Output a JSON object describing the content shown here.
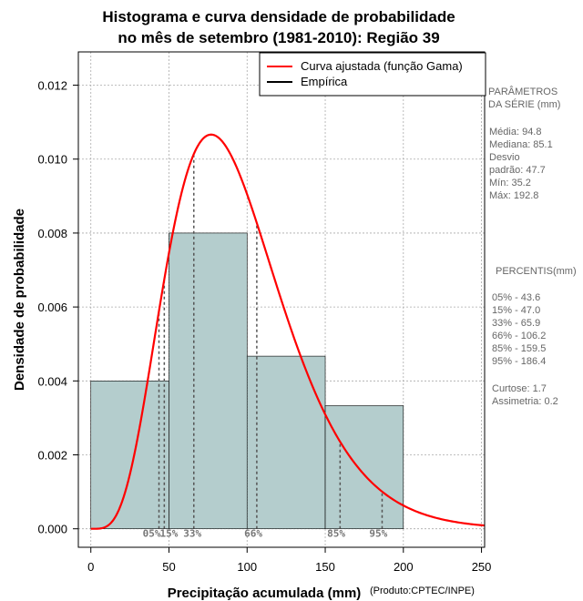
{
  "chart_data": {
    "type": "histogram",
    "title": [
      "Histograma e curva densidade de probabilidade",
      "no mês de setembro (1981-2010): Região 39"
    ],
    "xlabel": "Precipitação acumulada (mm)",
    "ylabel": "Densidade de probabilidade",
    "xlim": [
      -8,
      252
    ],
    "ylim": [
      -0.0005,
      0.0129
    ],
    "xticks": [
      0,
      50,
      100,
      150,
      200,
      250
    ],
    "yticks": [
      0.0,
      0.002,
      0.004,
      0.006,
      0.008,
      0.01,
      0.012
    ],
    "ytick_labels": [
      "0.000",
      "0.002",
      "0.004",
      "0.006",
      "0.008",
      "0.010",
      "0.012"
    ],
    "grid": true,
    "bins": [
      {
        "from": 0,
        "to": 50,
        "density": 0.004
      },
      {
        "from": 50,
        "to": 100,
        "density": 0.008
      },
      {
        "from": 100,
        "to": 150,
        "density": 0.00467
      },
      {
        "from": 150,
        "to": 200,
        "density": 0.00333
      }
    ],
    "gamma_fit": {
      "shape": 5.4,
      "scale": 17.5
    },
    "gamma_curve": {
      "x_from": 0,
      "x_to": 252,
      "step": 1
    },
    "percentiles": [
      {
        "label": "05%",
        "value": 43.6
      },
      {
        "label": "15%",
        "value": 47.0
      },
      {
        "label": "33%",
        "value": 65.9
      },
      {
        "label": "66%",
        "value": 106.2
      },
      {
        "label": "85%",
        "value": 159.5
      },
      {
        "label": "95%",
        "value": 186.4
      }
    ],
    "percentile_tags": [
      {
        "text": "05%",
        "x": 39
      },
      {
        "text": "15%",
        "x": 50
      },
      {
        "text": "33%",
        "x": 65
      },
      {
        "text": "66%",
        "x": 104
      },
      {
        "text": "85%",
        "x": 157
      },
      {
        "text": "95%",
        "x": 184
      }
    ],
    "legend": {
      "position": "top-right",
      "entries": [
        {
          "label": "Curva ajustada (função Gama)",
          "color": "#ff0000"
        },
        {
          "label": "Empírica",
          "color": "#000000"
        }
      ]
    },
    "colors": {
      "bar_fill": "#b4cdcd",
      "curve": "#ff0000",
      "grid": "#aaaaaa",
      "percentile_line": "#555555"
    }
  },
  "side_panel": {
    "params_title": [
      "PARÂMETROS",
      " DA SÉRIE (mm)"
    ],
    "params": [
      "Média:  94.8",
      "Mediana:  85.1",
      "Desvio",
      "padrão:  47.7",
      "Mín:  35.2",
      "Máx:  192.8"
    ],
    "percentis_title": "PERCENTIS(mm)",
    "percentis": [
      "05% -  43.6",
      "15% -  47.0",
      "33% -  65.9",
      "66% -  106.2",
      "85% -  159.5",
      "95% -  186.4"
    ],
    "stats": [
      "Curtose:  1.7",
      "Assimetria:  0.2"
    ]
  },
  "credit": "(Produto:CPTEC/INPE)"
}
